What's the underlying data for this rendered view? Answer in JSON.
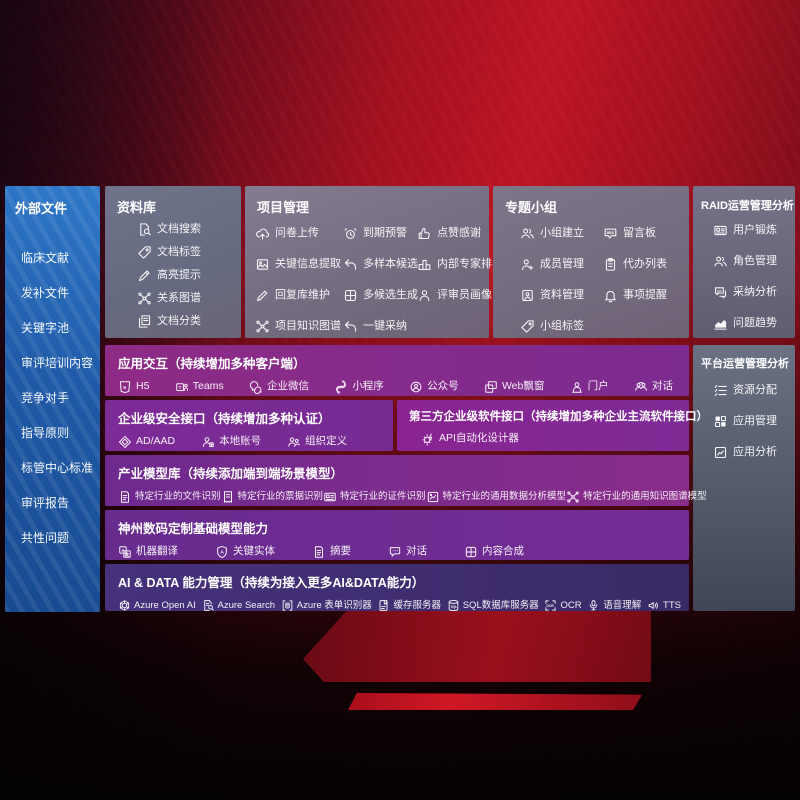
{
  "sidebar": {
    "title": "外部文件",
    "items": [
      "临床文献",
      "发补文件",
      "关键字池",
      "审评培训内容",
      "竞争对手",
      "指导原则",
      "标管中心标准",
      "审评报告",
      "共性问题"
    ]
  },
  "panels": {
    "data_library": {
      "title": "资料库",
      "items": [
        {
          "icon": "doc-search",
          "label": "文档搜索"
        },
        {
          "icon": "tag",
          "label": "文档标签"
        },
        {
          "icon": "highlight-pen",
          "label": "高亮提示"
        },
        {
          "icon": "knowledge-graph",
          "label": "关系图谱"
        },
        {
          "icon": "doc-classify",
          "label": "文档分类"
        }
      ]
    },
    "project_mgmt": {
      "title": "项目管理",
      "items": [
        {
          "icon": "cloud-upload",
          "label": "问卷上传"
        },
        {
          "icon": "alarm",
          "label": "到期预警"
        },
        {
          "icon": "thumbs-up",
          "label": "点赞感谢"
        },
        {
          "icon": "image-extract",
          "label": "关键信息提取"
        },
        {
          "icon": "reply-arrow",
          "label": "多样本候选"
        },
        {
          "icon": "ranking",
          "label": "内部专家排名"
        },
        {
          "icon": "pencil",
          "label": "回复库维护"
        },
        {
          "icon": "quad-grid",
          "label": "多候选生成"
        },
        {
          "icon": "person",
          "label": "评审员画像"
        },
        {
          "icon": "knowledge-graph",
          "label": "项目知识图谱"
        },
        {
          "icon": "reply-arrow",
          "label": "一键采纳"
        }
      ]
    },
    "topic_groups": {
      "title": "专题小组",
      "items": [
        {
          "icon": "users",
          "label": "小组建立"
        },
        {
          "icon": "bbs-board",
          "label": "留言板"
        },
        {
          "icon": "person-add",
          "label": "成员管理"
        },
        {
          "icon": "clipboard",
          "label": "代办列表"
        },
        {
          "icon": "photo-album",
          "label": "资料管理"
        },
        {
          "icon": "bell",
          "label": "事项提醒"
        },
        {
          "icon": "tag",
          "label": "小组标签"
        }
      ]
    },
    "raid_analysis": {
      "title": "RAID运营管理分析",
      "items": [
        {
          "icon": "id-card",
          "label": "用户锻炼"
        },
        {
          "icon": "users",
          "label": "角色管理"
        },
        {
          "icon": "qa-chat",
          "label": "采纳分析"
        },
        {
          "icon": "trend-chart",
          "label": "问题趋势"
        }
      ]
    },
    "platform_analysis": {
      "title": "平台运营管理分析",
      "items": [
        {
          "icon": "slash-list",
          "label": "资源分配"
        },
        {
          "icon": "app-grid",
          "label": "应用管理"
        },
        {
          "icon": "app-analysis",
          "label": "应用分析"
        }
      ]
    }
  },
  "bands": {
    "app_interaction": {
      "title": "应用交互（持续增加多种客户端）",
      "items": [
        {
          "icon": "h5",
          "label": "H5"
        },
        {
          "icon": "teams",
          "label": "Teams"
        },
        {
          "icon": "wechat-work",
          "label": "企业微信"
        },
        {
          "icon": "miniprogram",
          "label": "小程序"
        },
        {
          "icon": "official-account",
          "label": "公众号"
        },
        {
          "icon": "web-window",
          "label": "Web飘窗"
        },
        {
          "icon": "portal",
          "label": "门户"
        },
        {
          "icon": "duo-chat",
          "label": "对话"
        }
      ]
    },
    "enterprise_security": {
      "title": "企业级安全接口（持续增加多种认证）",
      "items": [
        {
          "icon": "diamond-shield",
          "label": "AD/AAD"
        },
        {
          "icon": "local-account",
          "label": "本地账号"
        },
        {
          "icon": "org-define",
          "label": "组织定义"
        }
      ]
    },
    "third_party": {
      "title": "第三方企业级软件接口（持续增加多种企业主流软件接口）",
      "items": [
        {
          "icon": "api-gear",
          "label": "API自动化设计器"
        }
      ]
    },
    "industry_models": {
      "title": "产业模型库（持续添加端到端场景模型）",
      "items": [
        {
          "icon": "doc-file",
          "label": "特定行业的文件识别"
        },
        {
          "icon": "receipt",
          "label": "特定行业的票据识别"
        },
        {
          "icon": "id-card",
          "label": "特定行业的证件识别"
        },
        {
          "icon": "data-chart",
          "label": "特定行业的通用数据分析模型"
        },
        {
          "icon": "knowledge-graph",
          "label": "特定行业的通用知识图谱模型"
        }
      ]
    },
    "digital_china_models": {
      "title": "神州数码定制基础模型能力",
      "items": [
        {
          "icon": "translate",
          "label": "机器翻译"
        },
        {
          "icon": "entity-shield",
          "label": "关键实体"
        },
        {
          "icon": "doc-file",
          "label": "摘要"
        },
        {
          "icon": "chat-bubble",
          "label": "对话"
        },
        {
          "icon": "quad-grid",
          "label": "内容合成"
        }
      ]
    },
    "ai_data": {
      "title": "AI & DATA 能力管理（持续为接入更多AI&DATA能力）",
      "items": [
        {
          "icon": "openai",
          "label": "Azure Open AI"
        },
        {
          "icon": "azure-search",
          "label": "Azure Search"
        },
        {
          "icon": "form-recognizer",
          "label": "Azure 表单识别器"
        },
        {
          "icon": "cache-server",
          "label": "缓存服务器"
        },
        {
          "icon": "sql-db",
          "label": "SQL数据库服务器"
        },
        {
          "icon": "ocr",
          "label": "OCR"
        },
        {
          "icon": "speech",
          "label": "语音理解"
        },
        {
          "icon": "tts",
          "label": "TTS"
        }
      ]
    }
  },
  "colors": {
    "sidebar_blue": "#1f5aa8",
    "panel_gray": "#746e84",
    "platform_slate": "#57606f",
    "band_magenta": "#8d2b86",
    "band_purple": "#7b2b94",
    "band_indigo": "#42307a",
    "background_red": "#b01422"
  }
}
